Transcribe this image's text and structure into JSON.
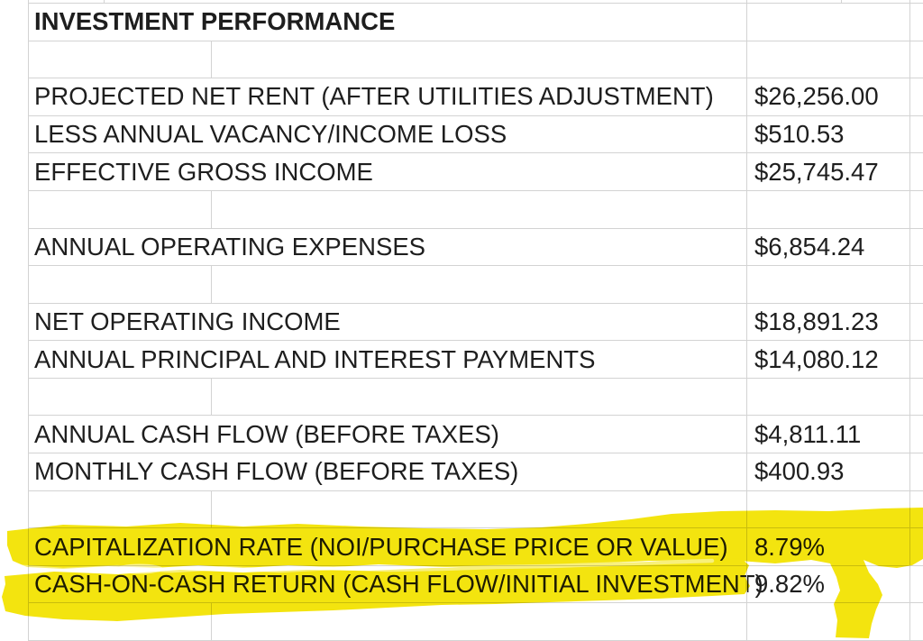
{
  "sheet": {
    "title": "INVESTMENT PERFORMANCE",
    "rows": [
      {
        "label": "INVESTMENT PERFORMANCE",
        "value": "",
        "style": "title"
      },
      {
        "label": "",
        "value": "",
        "empty": true
      },
      {
        "label": "PROJECTED NET RENT (AFTER UTILITIES ADJUSTMENT)",
        "value": "$26,256.00"
      },
      {
        "label": "LESS ANNUAL VACANCY/INCOME LOSS",
        "value": "$510.53"
      },
      {
        "label": "EFFECTIVE GROSS INCOME",
        "value": "$25,745.47"
      },
      {
        "label": "",
        "value": "",
        "empty": true
      },
      {
        "label": "ANNUAL OPERATING EXPENSES",
        "value": "$6,854.24"
      },
      {
        "label": "",
        "value": "",
        "empty": true
      },
      {
        "label": "NET OPERATING INCOME",
        "value": "$18,891.23"
      },
      {
        "label": "ANNUAL PRINCIPAL AND INTEREST PAYMENTS",
        "value": "$14,080.12"
      },
      {
        "label": "",
        "value": "",
        "empty": true
      },
      {
        "label": "ANNUAL CASH FLOW (BEFORE TAXES)",
        "value": "$4,811.11"
      },
      {
        "label": "MONTHLY CASH FLOW (BEFORE TAXES)",
        "value": "$400.93"
      },
      {
        "label": "",
        "value": "",
        "empty": true
      },
      {
        "label": "CAPITALIZATION RATE (NOI/PURCHASE PRICE OR VALUE)",
        "value": "8.79%",
        "highlighted": true
      },
      {
        "label": "CASH-ON-CASH RETURN (CASH FLOW/INITIAL INVESTMENT)",
        "value": "9.82%",
        "highlighted": true
      },
      {
        "label": "",
        "value": "",
        "empty": true
      }
    ]
  },
  "highlight": {
    "color": "#f3e40f",
    "seam_color": "#ffffff"
  },
  "colors": {
    "gridline": "#d3d3d3",
    "text": "#1e1e1e",
    "background": "#ffffff"
  },
  "layout_values": {
    "note": "two bottom metric rows are marked with a yellow highlighter stroke"
  }
}
